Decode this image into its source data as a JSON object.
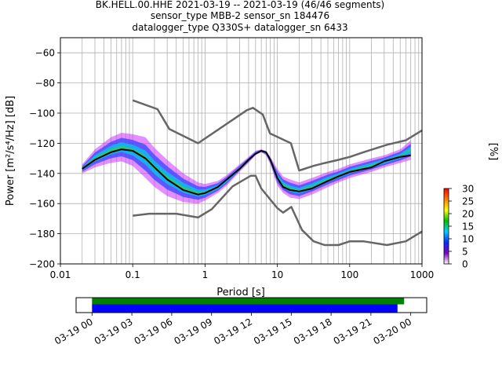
{
  "chart_data": [
    {
      "type": "line",
      "title_lines": [
        "BK.HELL.00.HHE   2021-03-19 -- 2021-03-19  (46/46 segments)",
        "sensor_type MBB-2 sensor_sn 184476",
        "datalogger_type Q330S+ datalogger_sn 6433"
      ],
      "xlabel": "Period [s]",
      "ylabel": "Power [m²/s⁴/Hz] [dB]",
      "xscale": "log",
      "xlim": [
        0.01,
        1000
      ],
      "ylim": [
        -200,
        -50
      ],
      "x_tick_labels": [
        "0.01",
        "0.1",
        "1",
        "10",
        "100",
        "1000"
      ],
      "y_ticks": [
        -60,
        -80,
        -100,
        -120,
        -140,
        -160,
        -180,
        -200
      ],
      "y_tick_labels": [
        "−60",
        "−80",
        "−100",
        "−120",
        "−140",
        "−160",
        "−180",
        "−200"
      ],
      "grid": true,
      "colorbar": {
        "label": "[%]",
        "ticks": [
          0,
          5,
          10,
          15,
          20,
          25,
          30
        ],
        "range": [
          0,
          30
        ],
        "colors": [
          "#ffffff",
          "#8000c0",
          "#0030ff",
          "#00d0ff",
          "#00c000",
          "#ffff00",
          "#ff8000",
          "#ff0000"
        ]
      },
      "series": [
        {
          "name": "",
          "color": "#000000",
          "x": [
            0.02,
            0.03,
            0.05,
            0.07,
            0.1,
            0.15,
            0.2,
            0.3,
            0.5,
            0.8,
            1.0,
            1.5,
            2,
            3,
            4,
            5,
            6,
            7,
            8,
            10,
            12,
            15,
            20,
            30,
            50,
            70,
            100,
            200,
            300,
            500,
            700
          ],
          "y": [
            -137,
            -131,
            -126,
            -124,
            -125,
            -130,
            -136,
            -144,
            -151,
            -154,
            -153,
            -149,
            -144,
            -137,
            -131,
            -127,
            -125,
            -126,
            -131,
            -143,
            -149,
            -151,
            -152,
            -150,
            -145,
            -142,
            -139,
            -136,
            -132,
            -129,
            -128
          ]
        },
        {
          "name": "",
          "color": "#666666",
          "x": [
            0.1,
            0.22,
            0.32,
            0.8,
            3.8,
            4.6,
            6.3,
            7.9,
            15.4,
            20,
            21.9,
            31.6,
            45,
            70,
            101,
            154,
            328,
            600,
            1000
          ],
          "y": [
            -91.5,
            -97.4,
            -110.5,
            -120.0,
            -98.0,
            -96.5,
            -101.0,
            -113.5,
            -120.0,
            -138.0,
            -137.5,
            -135.0,
            -133.1,
            -131.0,
            -129.0,
            -126.0,
            -121.0,
            -118.0,
            -111.5
          ]
        },
        {
          "name": "",
          "color": "#666666",
          "x": [
            0.1,
            0.17,
            0.4,
            0.8,
            1.24,
            2.4,
            4.3,
            5.0,
            6.0,
            10,
            12,
            15.6,
            21.9,
            31.6,
            45,
            70,
            101,
            154,
            328,
            600,
            1000
          ],
          "y": [
            -168.0,
            -166.7,
            -166.7,
            -169.2,
            -163.7,
            -148.6,
            -141.5,
            -141.5,
            -150.0,
            -163.0,
            -166.0,
            -162.2,
            -177.5,
            -185.0,
            -187.5,
            -187.5,
            -185.0,
            -185.0,
            -187.5,
            -185.0,
            -178.5
          ]
        }
      ],
      "spectrogram_spread": {
        "x": [
          0.02,
          0.03,
          0.05,
          0.07,
          0.1,
          0.15,
          0.2,
          0.3,
          0.5,
          0.8,
          1.0,
          1.5,
          2,
          3,
          4,
          5,
          6,
          7,
          8,
          10,
          12,
          15,
          20,
          30,
          50,
          70,
          100,
          200,
          300,
          500,
          700
        ],
        "upper": [
          -134,
          -124,
          -116,
          -113,
          -114,
          -116,
          -123,
          -131,
          -140,
          -146,
          -147,
          -145,
          -141,
          -134,
          -129,
          -125,
          -124,
          -125,
          -129,
          -137,
          -142,
          -144,
          -146,
          -143,
          -139,
          -137,
          -134,
          -130,
          -128,
          -124,
          -118
        ],
        "lower": [
          -140,
          -136,
          -133,
          -132,
          -135,
          -143,
          -149,
          -155,
          -159,
          -160,
          -158,
          -153,
          -148,
          -139,
          -133,
          -128,
          -126,
          -128,
          -134,
          -148,
          -153,
          -156,
          -157,
          -154,
          -149,
          -146,
          -143,
          -139,
          -136,
          -133,
          -131
        ]
      }
    },
    {
      "type": "timeline",
      "tick_labels": [
        "03-19 00",
        "03-19 03",
        "03-19 06",
        "03-19 09",
        "03-19 12",
        "03-19 15",
        "03-19 18",
        "03-19 21",
        "03-20 00"
      ],
      "range_hours": [
        -1.2,
        25.2
      ],
      "bars": [
        {
          "color": "#008000",
          "start_hour": 0,
          "end_hour": 23.5
        },
        {
          "color": "#0000ff",
          "start_hour": 0,
          "end_hour": 23.0
        }
      ]
    }
  ]
}
